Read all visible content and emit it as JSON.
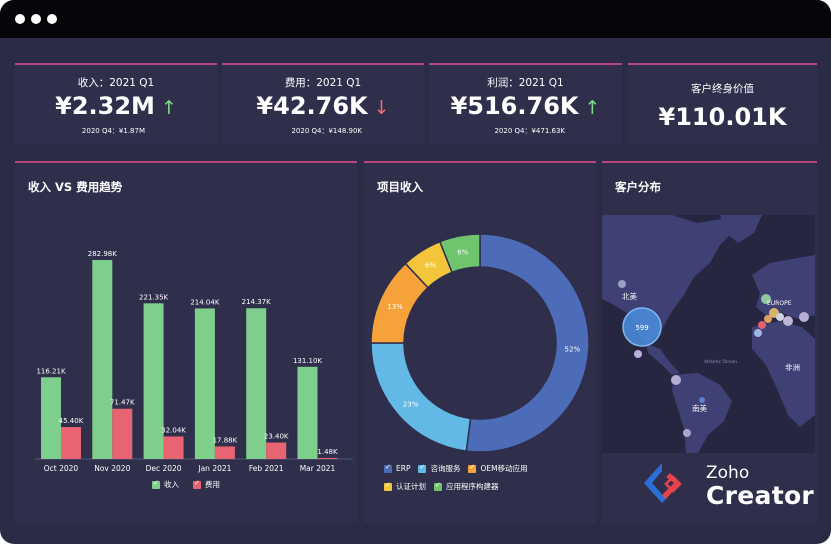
{
  "window": {
    "controls": [
      "close",
      "minimize",
      "maximize"
    ]
  },
  "kpis": [
    {
      "label": "收入：2021 Q1",
      "value": "¥2.32M",
      "arrow": "↑",
      "arrow_color": "#7fd98a",
      "prev": "2020 Q4：¥1.87M"
    },
    {
      "label": "费用：2021 Q1",
      "value": "¥42.76K",
      "arrow": "↓",
      "arrow_color": "#ef6b79",
      "prev": "2020 Q4：¥148.90K"
    },
    {
      "label": "利润：2021 Q1",
      "value": "¥516.76K",
      "arrow": "↑",
      "arrow_color": "#7fd98a",
      "prev": "2020 Q4：¥471.63K"
    },
    {
      "label": "客户终身价值",
      "value": "¥110.01K"
    }
  ],
  "panels": {
    "trend_title": "收入 VS 费用趋势",
    "project_title": "项目收入",
    "customer_title": "客户分布"
  },
  "colors": {
    "background": "#2b2b45",
    "card": "#2f2f4c",
    "accent": "#b3477e",
    "income": "#7fcf8c",
    "expense": "#e86472"
  },
  "chart_data": [
    {
      "type": "bar",
      "categories": [
        "Oct 2020",
        "Nov 2020",
        "Dec 2020",
        "Jan 2021",
        "Feb 2021",
        "Mar 2021"
      ],
      "series": [
        {
          "name": "收入",
          "color": "#7fcf8c",
          "values": [
            116.21,
            282.98,
            221.35,
            214.04,
            214.37,
            131.1
          ],
          "labels": [
            "116.21K",
            "282.98K",
            "221.35K",
            "214.04K",
            "214.37K",
            "131.10K"
          ]
        },
        {
          "name": "费用",
          "color": "#e86472",
          "values": [
            45.4,
            71.47,
            32.04,
            17.88,
            23.4,
            1.48
          ],
          "labels": [
            "45.40K",
            "71.47K",
            "32.04K",
            "17.88K",
            "23.40K",
            "1.48K"
          ]
        }
      ],
      "ylim": [
        0,
        300
      ],
      "legend_position": "bottom"
    },
    {
      "type": "pie",
      "donut": true,
      "slices": [
        {
          "label": "ERP",
          "value": 52,
          "text": "52%",
          "color": "#4d6cb8"
        },
        {
          "label": "咨询服务",
          "value": 23,
          "text": "23%",
          "color": "#62b9e6"
        },
        {
          "label": "OEM移动应用",
          "value": 13,
          "text": "13%",
          "color": "#f5a23a"
        },
        {
          "label": "认证计划",
          "value": 6,
          "text": "6%",
          "color": "#f2c53a"
        },
        {
          "label": "应用程序构建器",
          "value": 6,
          "text": "6%",
          "color": "#6fc46e"
        }
      ],
      "legend_position": "bottom"
    }
  ],
  "map": {
    "labels": {
      "north_america": "北美",
      "south_america": "南美",
      "europe": "EUROPE",
      "africa": "非洲",
      "ocean": "Atlantic Ocean"
    },
    "bubble_value": "599"
  },
  "brand": {
    "line1": "Zoho",
    "line2": "Creator"
  }
}
